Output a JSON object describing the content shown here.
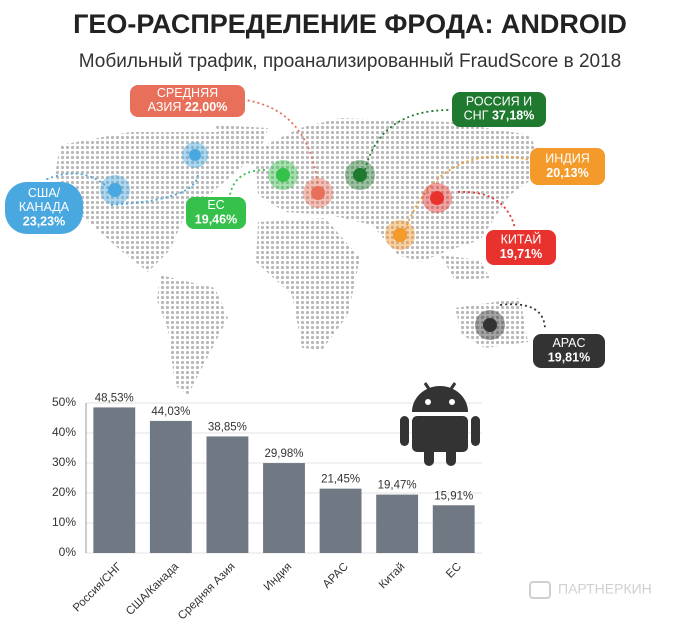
{
  "header": {
    "title": "ГЕО-РАСПРЕДЕЛЕНИЕ ФРОДА: ANDROID",
    "subtitle": "Мобильный трафик, проанализированный FraudScore в 2018"
  },
  "map": {
    "regions": [
      {
        "name_lines": [
          "США/",
          "КАНАДА"
        ],
        "value": "23,23%",
        "color": "#4aa8e0",
        "value_inline": false
      },
      {
        "name_lines": [
          "СРЕДНЯЯ",
          "АЗИЯ"
        ],
        "value": "22,00%",
        "color": "#e8705a",
        "value_inline": true
      },
      {
        "name_lines": [
          "РОССИЯ И",
          "СНГ"
        ],
        "value": "37,18%",
        "color": "#1f7a2f",
        "value_inline": true
      },
      {
        "name_lines": [
          "ИНДИЯ"
        ],
        "value": "20,13%",
        "color": "#f39a2b",
        "value_inline": false
      },
      {
        "name_lines": [
          "ЕС"
        ],
        "value": "19,46%",
        "color": "#35c14b",
        "value_inline": false
      },
      {
        "name_lines": [
          "КИТАЙ"
        ],
        "value": "19,71%",
        "color": "#e8322e",
        "value_inline": false
      },
      {
        "name_lines": [
          "APAC"
        ],
        "value": "19,81%",
        "color": "#333333",
        "value_inline": false
      }
    ]
  },
  "chart_data": {
    "type": "bar",
    "categories": [
      "Россия/СНГ",
      "США/Канада",
      "Средняя Азия",
      "Индия",
      "APAC",
      "Китай",
      "ЕС"
    ],
    "values": [
      48.53,
      44.03,
      38.85,
      29.98,
      21.45,
      19.47,
      15.91
    ],
    "value_labels": [
      "48,53%",
      "44,03%",
      "38,85%",
      "29,98%",
      "21,45%",
      "19,47%",
      "15,91%"
    ],
    "color": "#6f7883",
    "ylim": [
      0,
      50
    ],
    "yticks": [
      {
        "value": 0,
        "label": "0%"
      },
      {
        "value": 10,
        "label": "10%"
      },
      {
        "value": 20,
        "label": "20%"
      },
      {
        "value": 30,
        "label": "30%"
      },
      {
        "value": 40,
        "label": "40%"
      },
      {
        "value": 50,
        "label": "50%"
      }
    ],
    "grid": true
  },
  "watermark": "ПАРТНЕРКИН"
}
